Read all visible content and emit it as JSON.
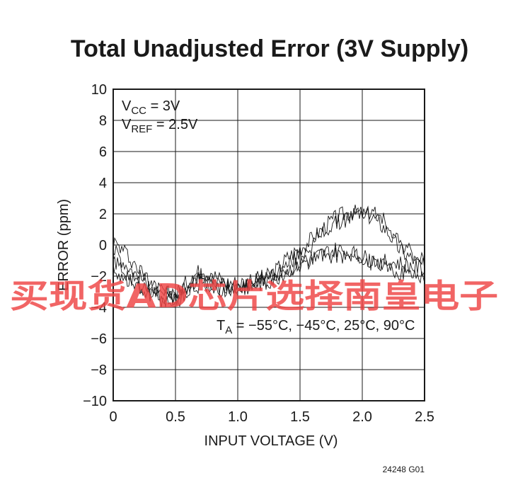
{
  "chart_data": {
    "type": "line",
    "title": "Total Unadjusted Error (3V Supply)",
    "xlabel": "INPUT VOLTAGE (V)",
    "ylabel": "ERROR (ppm)",
    "xlim": [
      0,
      2.5
    ],
    "ylim": [
      -10,
      10
    ],
    "xticks": [
      "0",
      "0.5",
      "1.0",
      "1.5",
      "2.0",
      "2.5"
    ],
    "yticks": [
      "10",
      "8",
      "6",
      "4",
      "2",
      "0",
      "−2",
      "−4",
      "−6",
      "−8",
      "−10"
    ],
    "grid": true,
    "annotations": {
      "vcc": {
        "main": "V",
        "sub": "CC",
        "rest": " = 3V"
      },
      "vref": {
        "main": "V",
        "sub": "REF",
        "rest": " = 2.5V"
      },
      "ta": {
        "main": "T",
        "sub": "A",
        "rest": " = −55°C, −45°C, 25°C, 90°C"
      }
    },
    "figure_code": "24248 G01",
    "series": [
      {
        "x": [
          0.0,
          0.1,
          0.2,
          0.3,
          0.4,
          0.5,
          0.6,
          0.7,
          0.8,
          0.9,
          1.0,
          1.1,
          1.2,
          1.3,
          1.4,
          1.5,
          1.6,
          1.7,
          1.8,
          1.9,
          2.0,
          2.1,
          2.2,
          2.3,
          2.4,
          2.5
        ],
        "values": [
          0.2,
          -0.5,
          -1.5,
          -2.4,
          -3.0,
          -3.3,
          -2.6,
          -2.0,
          -2.3,
          -2.6,
          -2.5,
          -2.3,
          -2.1,
          -1.9,
          -1.3,
          -0.6,
          0.0,
          0.9,
          1.4,
          1.8,
          2.1,
          2.0,
          1.4,
          0.2,
          -0.6,
          -1.1
        ]
      },
      {
        "x": [
          0.0,
          0.1,
          0.2,
          0.3,
          0.4,
          0.5,
          0.6,
          0.7,
          0.8,
          0.9,
          1.0,
          1.1,
          1.2,
          1.3,
          1.4,
          1.5,
          1.6,
          1.7,
          1.8,
          1.9,
          2.0,
          2.1,
          2.2,
          2.3,
          2.4,
          2.5
        ],
        "values": [
          -0.3,
          -1.2,
          -2.0,
          -2.6,
          -3.1,
          -3.2,
          -2.3,
          -1.6,
          -1.9,
          -2.4,
          -2.4,
          -2.4,
          -2.2,
          -1.7,
          -0.8,
          -0.2,
          0.4,
          1.2,
          1.8,
          2.1,
          2.0,
          1.7,
          0.9,
          -0.3,
          -0.9,
          -1.4
        ]
      },
      {
        "x": [
          0.0,
          0.1,
          0.2,
          0.3,
          0.4,
          0.5,
          0.6,
          0.7,
          0.8,
          0.9,
          1.0,
          1.1,
          1.2,
          1.3,
          1.4,
          1.5,
          1.6,
          1.7,
          1.8,
          1.9,
          2.0,
          2.1,
          2.2,
          2.3,
          2.4,
          2.5
        ],
        "values": [
          -1.0,
          -1.8,
          -2.4,
          -2.9,
          -3.3,
          -3.5,
          -2.8,
          -2.3,
          -2.6,
          -2.8,
          -2.7,
          -2.6,
          -2.5,
          -2.2,
          -1.6,
          -1.2,
          -0.9,
          -0.5,
          -0.3,
          -0.5,
          -0.8,
          -1.0,
          -1.1,
          -1.2,
          -1.4,
          -1.6
        ]
      },
      {
        "x": [
          0.0,
          0.1,
          0.2,
          0.3,
          0.4,
          0.5,
          0.6,
          0.7,
          0.8,
          0.9,
          1.0,
          1.1,
          1.2,
          1.3,
          1.4,
          1.5,
          1.6,
          1.7,
          1.8,
          1.9,
          2.0,
          2.1,
          2.2,
          2.3,
          2.4,
          2.5
        ],
        "values": [
          -1.5,
          -2.2,
          -2.8,
          -3.2,
          -3.5,
          -3.7,
          -3.0,
          -2.5,
          -2.7,
          -2.9,
          -2.8,
          -2.6,
          -2.4,
          -2.1,
          -1.7,
          -1.3,
          -1.0,
          -0.7,
          -0.6,
          -0.7,
          -0.9,
          -1.2,
          -1.5,
          -1.7,
          -1.9,
          -2.0
        ]
      }
    ]
  },
  "watermark": "买现货AD芯片选择南皇电子"
}
